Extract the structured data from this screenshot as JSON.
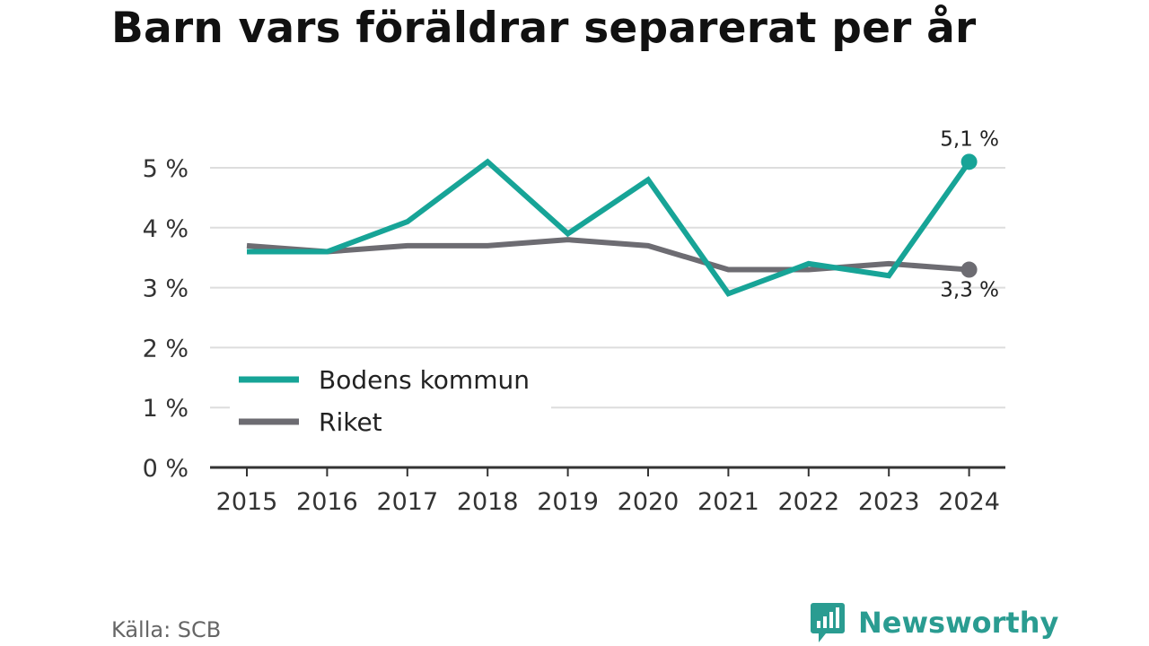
{
  "title": "Barn vars föräldrar separerat per år",
  "source": "Källa: SCB",
  "brand": {
    "name": "Newsworthy",
    "icon": "bar-chart-speech-bubble-icon",
    "color": "#2a9c91"
  },
  "chart_data": {
    "type": "line",
    "x": [
      "2015",
      "2016",
      "2017",
      "2018",
      "2019",
      "2020",
      "2021",
      "2022",
      "2023",
      "2024"
    ],
    "y_ticks": [
      "0 %",
      "1 %",
      "2 %",
      "3 %",
      "4 %",
      "5 %"
    ],
    "ylim": [
      0,
      5.5
    ],
    "grid": true,
    "legend_position": "lower-left",
    "series": [
      {
        "name": "Bodens kommun",
        "color": "#17a497",
        "values": [
          3.6,
          3.6,
          4.1,
          5.1,
          3.9,
          4.8,
          2.9,
          3.4,
          3.2,
          5.1
        ],
        "end_label": "5,1 %"
      },
      {
        "name": "Riket",
        "color": "#6d6c72",
        "values": [
          3.7,
          3.6,
          3.7,
          3.7,
          3.8,
          3.7,
          3.3,
          3.3,
          3.4,
          3.3
        ],
        "end_label": "3,3 %"
      }
    ]
  }
}
